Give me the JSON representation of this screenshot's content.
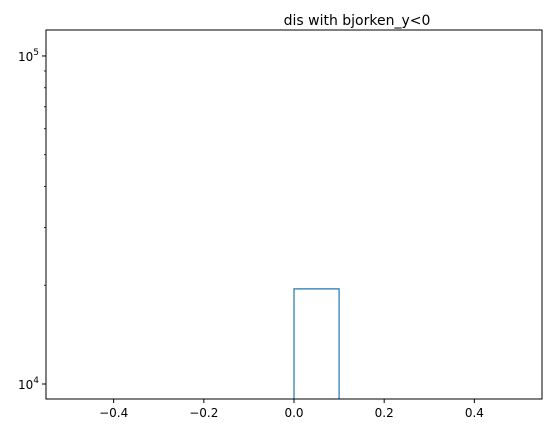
{
  "chart_data": {
    "type": "bar",
    "title": "dis with bjorken_y<0",
    "xlabel": "",
    "ylabel": "",
    "xlim": [
      -0.55,
      0.55
    ],
    "ylim": [
      9000,
      120000
    ],
    "yscale": "log",
    "grid": false,
    "legend": "none",
    "histtype": "step",
    "bars": [
      {
        "x0": 0.0,
        "x1": 0.1,
        "value": 19500
      }
    ],
    "xticks": [
      {
        "value": -0.4,
        "label": "−0.4"
      },
      {
        "value": -0.2,
        "label": "−0.2"
      },
      {
        "value": 0.0,
        "label": "0.0"
      },
      {
        "value": 0.2,
        "label": "0.2"
      },
      {
        "value": 0.4,
        "label": "0.4"
      }
    ],
    "yticks_major": [
      {
        "value": 10000,
        "base": "10",
        "exp": "4"
      },
      {
        "value": 100000,
        "base": "10",
        "exp": "5"
      }
    ],
    "yticks_minor": [
      20000,
      30000,
      40000,
      50000,
      60000,
      70000,
      80000,
      90000
    ],
    "colors": {
      "series": "#1f77b4",
      "axes": "#000000"
    }
  }
}
